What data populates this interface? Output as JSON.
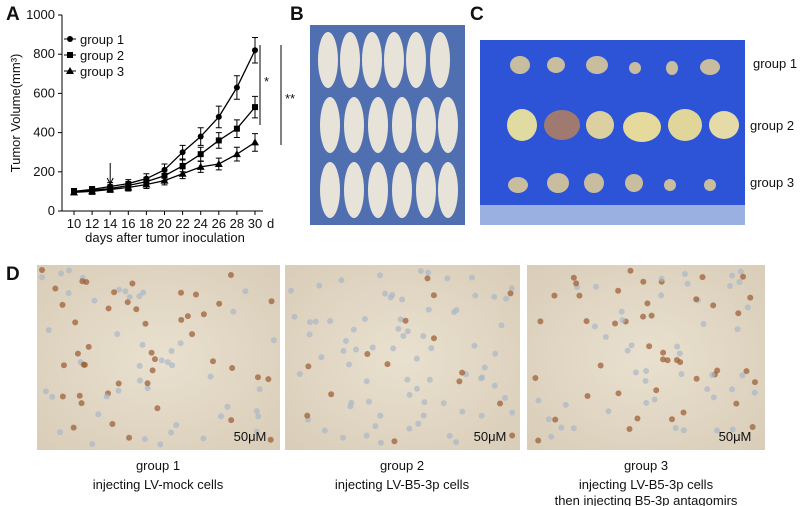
{
  "panels": {
    "a": "A",
    "b": "B",
    "c": "C",
    "d": "D"
  },
  "chart_data": {
    "type": "line",
    "ylabel": "Tumor Volume(mm³)",
    "xlabel": "days after tumor inoculation",
    "x_unit": "d",
    "x": [
      10,
      12,
      14,
      16,
      18,
      20,
      22,
      24,
      26,
      28,
      30
    ],
    "xlim": [
      9,
      31
    ],
    "xticks": [
      10,
      12,
      14,
      16,
      18,
      20,
      22,
      24,
      26,
      28,
      30
    ],
    "ylim": [
      0,
      1000
    ],
    "yticks": [
      0,
      200,
      400,
      600,
      800,
      1000
    ],
    "series": [
      {
        "name": "group 1",
        "color": "#000000",
        "marker": "circle",
        "values": [
          100,
          110,
          125,
          140,
          165,
          210,
          300,
          380,
          480,
          630,
          820
        ],
        "errors": [
          15,
          15,
          20,
          20,
          25,
          30,
          35,
          45,
          55,
          60,
          65
        ]
      },
      {
        "name": "group 2",
        "color": "#000000",
        "marker": "square",
        "values": [
          100,
          105,
          115,
          130,
          150,
          180,
          230,
          290,
          360,
          420,
          530
        ],
        "errors": [
          15,
          15,
          18,
          20,
          22,
          25,
          30,
          35,
          40,
          45,
          55
        ]
      },
      {
        "name": "group 3",
        "color": "#000000",
        "marker": "triangle",
        "values": [
          95,
          100,
          110,
          120,
          135,
          155,
          190,
          225,
          240,
          290,
          350
        ],
        "errors": [
          12,
          15,
          15,
          18,
          20,
          22,
          25,
          28,
          30,
          35,
          45
        ]
      }
    ],
    "annotations": [
      "*",
      "**"
    ]
  },
  "panel_c_labels": [
    "group 1",
    "group 2",
    "group 3"
  ],
  "panel_d": [
    {
      "group": "group 1",
      "lines": [
        "injecting LV-mock cells"
      ],
      "scale": "50μM"
    },
    {
      "group": "group 2",
      "lines": [
        "injecting LV-B5-3p cells"
      ],
      "scale": "50μM"
    },
    {
      "group": "group 3",
      "lines": [
        "injecting LV-B5-3p cells",
        "then injecting B5-3p antagomirs"
      ],
      "scale": "50μM"
    }
  ]
}
